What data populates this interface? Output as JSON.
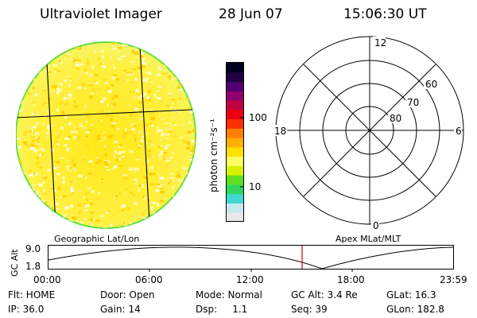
{
  "header": {
    "title": "Ultraviolet Imager",
    "date": "28 Jun 07",
    "time": "15:06:30 UT"
  },
  "colorbar": {
    "unit_label": "photon cm⁻²s⁻¹",
    "tick_100": "100",
    "tick_10": "10",
    "colors": [
      "#e8e8e8",
      "#c8e8f0",
      "#40d8d0",
      "#30d860",
      "#60e020",
      "#d8f000",
      "#ffff60",
      "#ffe000",
      "#ffb000",
      "#ff8000",
      "#ff3000",
      "#e80010",
      "#c00040",
      "#900070",
      "#500070",
      "#200040",
      "#000020"
    ]
  },
  "labels": {
    "geo": "Geographic Lat/Lon",
    "apex": "Apex MLat/MLT"
  },
  "polar": {
    "mlt_12": "12",
    "mlt_6": "6",
    "mlt_18": "18",
    "mlt_0": "0",
    "lat_60": "60",
    "lat_70": "70",
    "lat_80": "80"
  },
  "alt_plot": {
    "axis_label": "GC Alt",
    "y_max": "9.0",
    "y_min": "1.8",
    "x_ticks": [
      "00:00",
      "06:00",
      "12:00",
      "18:00",
      "23:59"
    ],
    "marker_color": "#dd0000"
  },
  "status": {
    "row1": [
      "Flt: HOME",
      "Door: Open",
      "Mode: Normal",
      "GC Alt: 3.4 Re",
      "GLat: 16.3"
    ],
    "row2": [
      "IP: 36.0",
      "Gain: 14",
      "Dsp:     1.1",
      "Seq: 39",
      "GLon: 182.8"
    ]
  }
}
